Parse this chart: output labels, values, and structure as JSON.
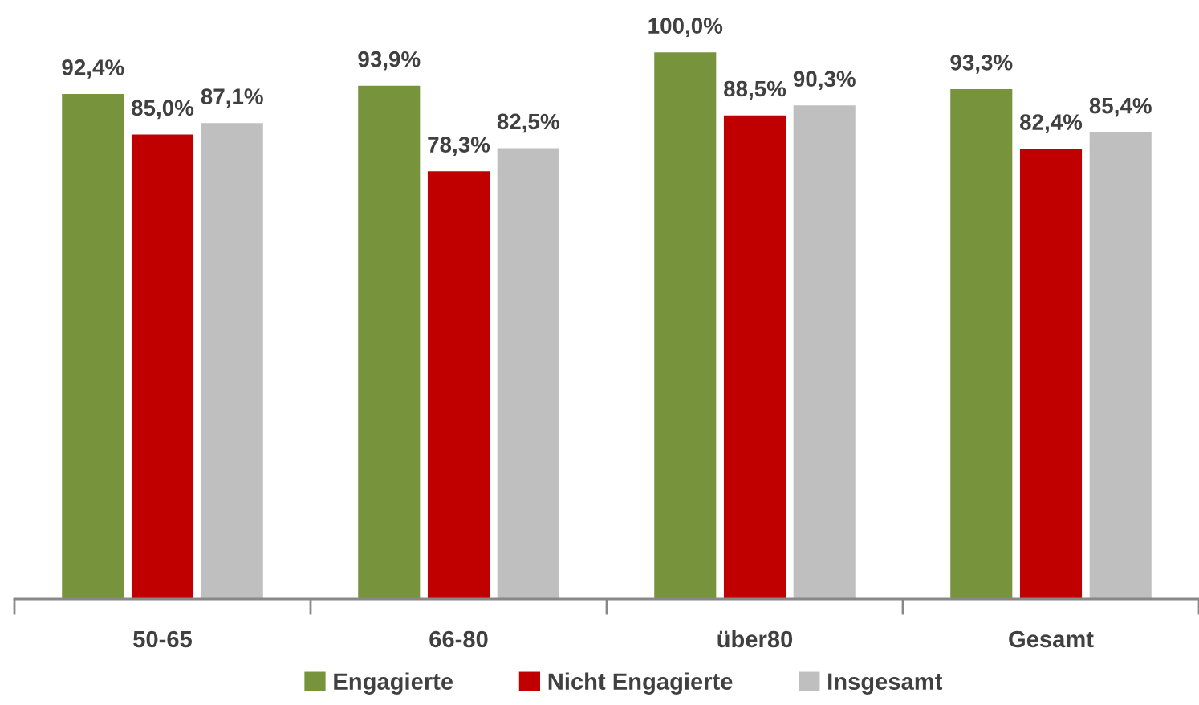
{
  "chart_data": {
    "type": "bar",
    "categories": [
      "50-65",
      "66-80",
      "über80",
      "Gesamt"
    ],
    "series": [
      {
        "name": "Engagierte",
        "color": "#77933c",
        "values": [
          92.4,
          93.9,
          100.0,
          93.3
        ],
        "value_labels": [
          "92,4%",
          "93,9%",
          "100,0%",
          "93,3%"
        ]
      },
      {
        "name": "Nicht Engagierte",
        "color": "#c00000",
        "values": [
          85.0,
          78.3,
          88.5,
          82.4
        ],
        "value_labels": [
          "85,0%",
          "78,3%",
          "88,5%",
          "82,4%"
        ]
      },
      {
        "name": "Insgesamt",
        "color": "#bfbfbf",
        "values": [
          87.1,
          82.5,
          90.3,
          85.4
        ],
        "value_labels": [
          "87,1%",
          "82,5%",
          "90,3%",
          "85,4%"
        ]
      }
    ],
    "tick_labels": "x",
    "legend": "bottom",
    "grid": false
  }
}
